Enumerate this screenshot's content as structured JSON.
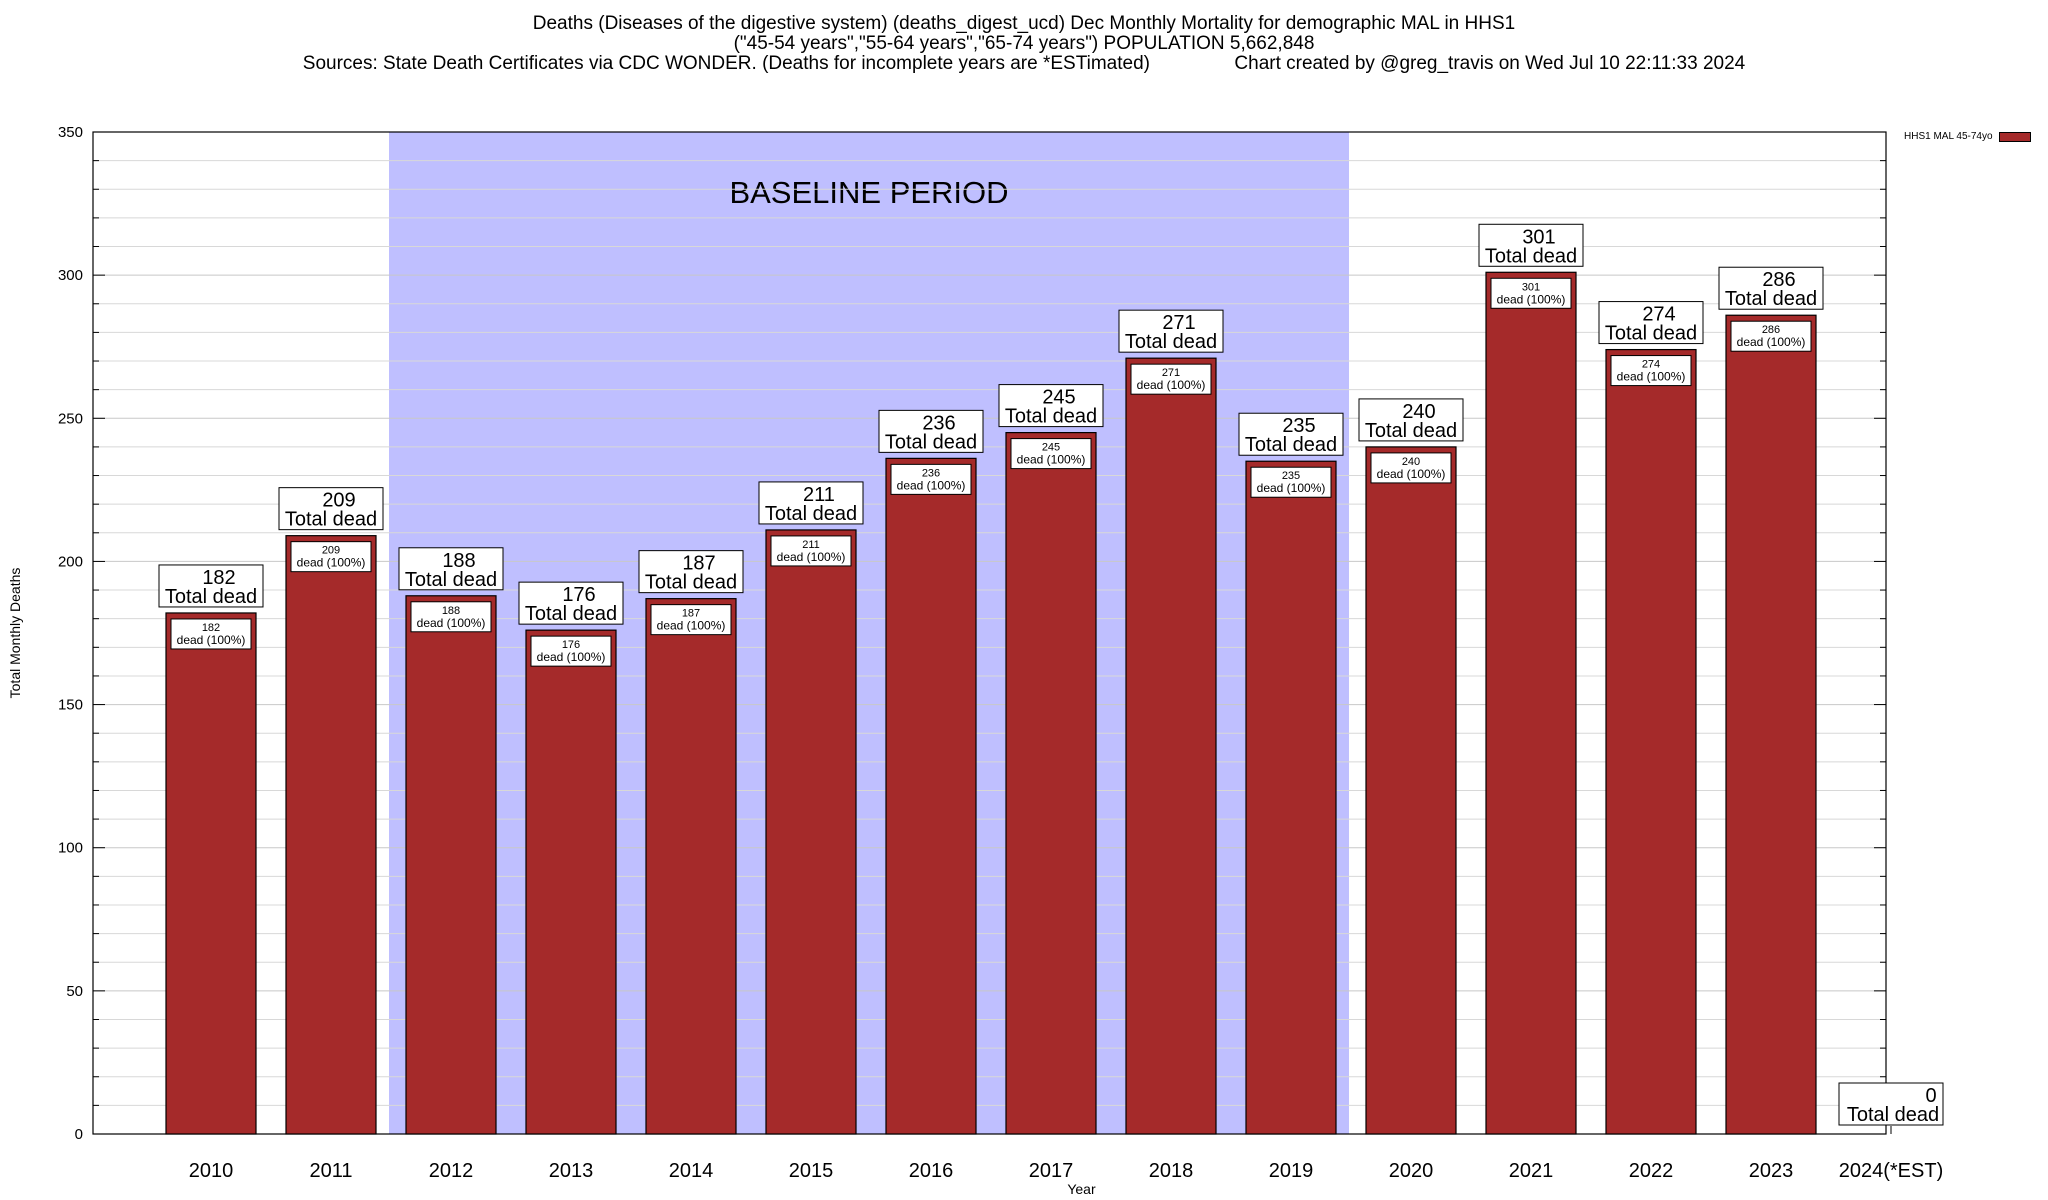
{
  "title_lines": [
    "Deaths (Diseases of the digestive system) (deaths_digest_ucd) Dec Monthly Mortality for demographic MAL in HHS1",
    "(\"45-54 years\",\"55-64 years\",\"65-74 years\") POPULATION 5,662,848",
    "Sources: State Death Certificates via CDC WONDER. (Deaths for incomplete years are *ESTimated)                Chart created by @greg_travis on Wed Jul 10 22:11:33 2024"
  ],
  "legend_label": "HHS1 MAL 45-74yo",
  "baseline_label": "BASELINE PERIOD",
  "colors": {
    "bar": "#a52a2a",
    "baseline": "#bfbfff"
  },
  "chart_data": {
    "type": "bar",
    "title": "Deaths (Diseases of the digestive system) (deaths_digest_ucd) Dec Monthly Mortality for demographic MAL in HHS1",
    "xlabel": "Year",
    "ylabel": "Total Monthly Deaths",
    "ylim": [
      0,
      350
    ],
    "yticks": [
      0,
      50,
      100,
      150,
      200,
      250,
      300,
      350
    ],
    "grid": true,
    "legend_position": "top-right",
    "categories": [
      "2010",
      "2011",
      "2012",
      "2013",
      "2014",
      "2015",
      "2016",
      "2017",
      "2018",
      "2019",
      "2020",
      "2021",
      "2022",
      "2023",
      "2024(*EST)"
    ],
    "series": [
      {
        "name": "HHS1 MAL 45-74yo",
        "values": [
          182,
          209,
          188,
          176,
          187,
          211,
          236,
          245,
          271,
          235,
          240,
          301,
          274,
          286,
          0
        ]
      }
    ],
    "total_label": "Total dead",
    "inner_label": "dead (100%)",
    "baseline_period": [
      "2012",
      "2019"
    ]
  }
}
